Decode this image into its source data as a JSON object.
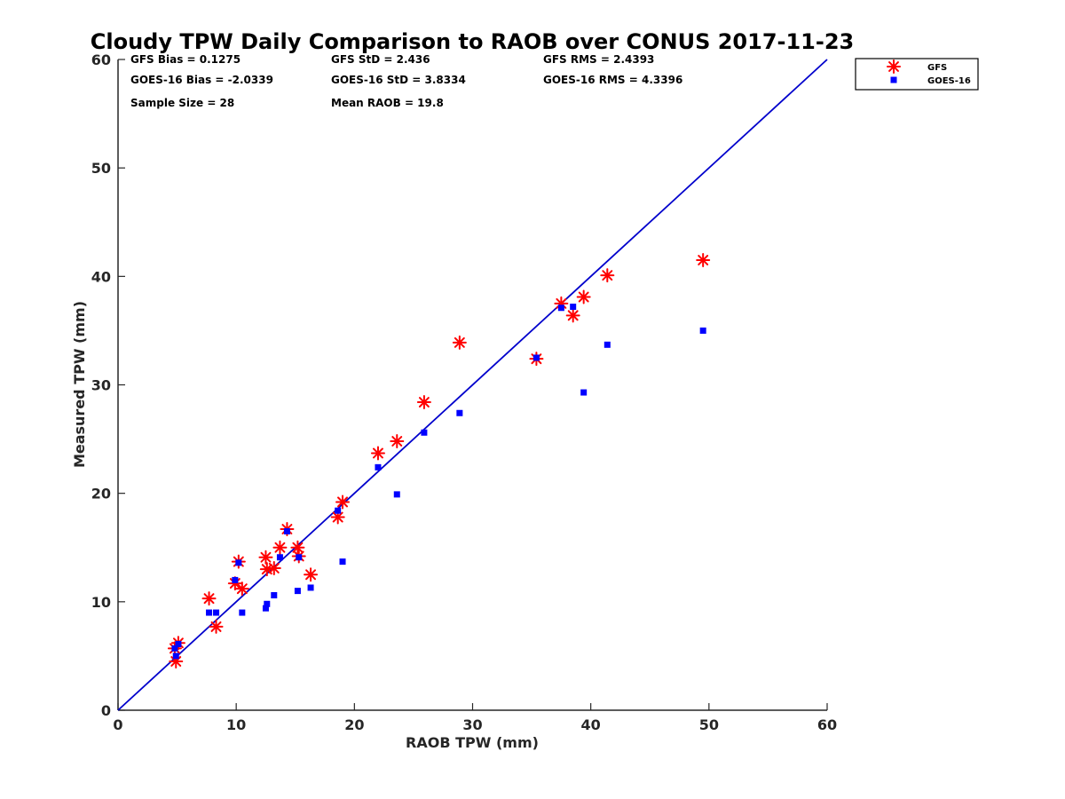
{
  "chart_data": {
    "type": "scatter",
    "title": "Cloudy TPW Daily Comparison to RAOB over CONUS 2017-11-23",
    "xlabel": "RAOB TPW (mm)",
    "ylabel": "Measured TPW (mm)",
    "xlim": [
      0,
      60
    ],
    "ylim": [
      0,
      60
    ],
    "xticks": [
      "0",
      "10",
      "20",
      "30",
      "40",
      "50",
      "60"
    ],
    "yticks": [
      "0",
      "10",
      "20",
      "30",
      "40",
      "50",
      "60"
    ],
    "reference_line": {
      "x": [
        0,
        60
      ],
      "y": [
        0,
        60
      ],
      "color": "#0000cc"
    },
    "legend_position": "outside top-right",
    "stats": [
      {
        "text": "GFS Bias = 0.1275"
      },
      {
        "text": "GFS StD = 2.436"
      },
      {
        "text": "GFS RMS = 2.4393"
      },
      {
        "text": "GOES-16 Bias = -2.0339"
      },
      {
        "text": "GOES-16 StD = 3.8334"
      },
      {
        "text": "GOES-16 RMS = 4.3396"
      },
      {
        "text": "Sample Size = 28"
      },
      {
        "text": "Mean RAOB = 19.8"
      }
    ],
    "series": [
      {
        "name": "GFS",
        "marker": "asterisk",
        "color": "#ff0000",
        "points": [
          [
            4.8,
            5.7
          ],
          [
            4.9,
            4.5
          ],
          [
            5.1,
            6.2
          ],
          [
            7.7,
            10.3
          ],
          [
            8.3,
            7.7
          ],
          [
            9.9,
            11.7
          ],
          [
            10.2,
            13.7
          ],
          [
            10.5,
            11.2
          ],
          [
            12.5,
            14.1
          ],
          [
            12.6,
            13.0
          ],
          [
            13.2,
            13.1
          ],
          [
            13.7,
            15.0
          ],
          [
            14.3,
            16.7
          ],
          [
            15.2,
            15.0
          ],
          [
            15.3,
            14.2
          ],
          [
            16.3,
            12.5
          ],
          [
            18.6,
            17.8
          ],
          [
            19.0,
            19.2
          ],
          [
            22.0,
            23.7
          ],
          [
            23.6,
            24.8
          ],
          [
            25.9,
            28.4
          ],
          [
            28.9,
            33.9
          ],
          [
            35.4,
            32.4
          ],
          [
            37.5,
            37.5
          ],
          [
            38.5,
            36.4
          ],
          [
            39.4,
            38.1
          ],
          [
            41.4,
            40.1
          ],
          [
            49.5,
            41.5
          ]
        ]
      },
      {
        "name": "GOES-16",
        "marker": "square",
        "color": "#0000ff",
        "points": [
          [
            4.8,
            5.7
          ],
          [
            4.9,
            5.0
          ],
          [
            5.1,
            6.1
          ],
          [
            7.7,
            9.0
          ],
          [
            8.3,
            9.0
          ],
          [
            9.9,
            12.0
          ],
          [
            10.2,
            13.6
          ],
          [
            10.5,
            9.0
          ],
          [
            12.5,
            9.4
          ],
          [
            12.6,
            9.8
          ],
          [
            13.2,
            10.6
          ],
          [
            13.7,
            14.1
          ],
          [
            14.3,
            16.5
          ],
          [
            15.2,
            11.0
          ],
          [
            15.3,
            14.1
          ],
          [
            16.3,
            11.3
          ],
          [
            18.6,
            18.4
          ],
          [
            19.0,
            13.7
          ],
          [
            22.0,
            22.4
          ],
          [
            23.6,
            19.9
          ],
          [
            25.9,
            25.6
          ],
          [
            28.9,
            27.4
          ],
          [
            35.4,
            32.5
          ],
          [
            37.5,
            37.1
          ],
          [
            38.5,
            37.2
          ],
          [
            39.4,
            29.3
          ],
          [
            41.4,
            33.7
          ],
          [
            49.5,
            35.0
          ]
        ]
      }
    ]
  }
}
